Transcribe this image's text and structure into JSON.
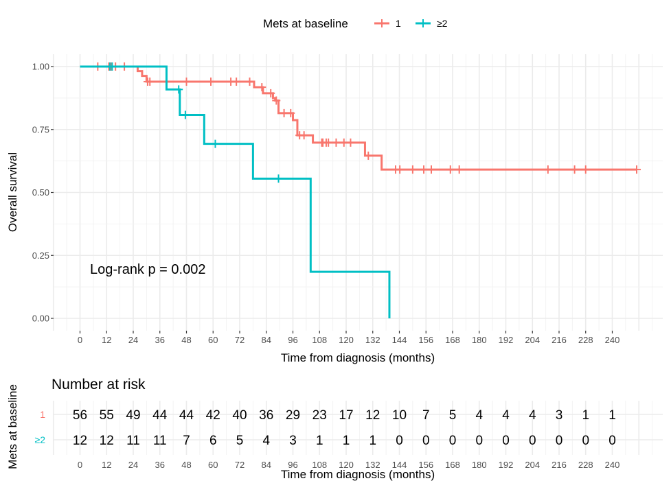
{
  "chart_data": {
    "type": "line",
    "subtype": "kaplan-meier",
    "title": "",
    "xlabel": "Time from diagnosis (months)",
    "ylabel": "Overall survival",
    "xlim": [
      -13,
      263
    ],
    "ylim": [
      0,
      1
    ],
    "x_ticks": [
      0,
      12,
      24,
      36,
      48,
      60,
      72,
      84,
      96,
      108,
      120,
      132,
      144,
      156,
      168,
      180,
      192,
      204,
      216,
      228,
      240
    ],
    "x_tick_labels": [
      "0",
      "12",
      "24",
      "36",
      "48",
      "60",
      "72",
      "84",
      "96",
      "108",
      "120",
      "132",
      "144",
      "156",
      "168",
      "180",
      "192",
      "204",
      "216",
      "228",
      "240"
    ],
    "y_ticks": [
      0,
      0.25,
      0.5,
      0.75,
      1.0
    ],
    "y_tick_labels": [
      "0.00",
      "0.25",
      "0.50",
      "0.75",
      "1.00"
    ],
    "grid": true,
    "legend": {
      "title": "Mets at baseline",
      "placement": "top",
      "entries": [
        "1",
        "≥2"
      ]
    },
    "annotation": "Log-rank p = 0.002",
    "series": [
      {
        "name": "1",
        "color": "#F8766D",
        "steps": [
          [
            0,
            1.0
          ],
          [
            26,
            0.982
          ],
          [
            28,
            0.963
          ],
          [
            30,
            0.94
          ],
          [
            78.5,
            0.918
          ],
          [
            82.5,
            0.894
          ],
          [
            87,
            0.875
          ],
          [
            88,
            0.865
          ],
          [
            89.5,
            0.815
          ],
          [
            96,
            0.787
          ],
          [
            98,
            0.727
          ],
          [
            105,
            0.698
          ],
          [
            128.5,
            0.646
          ],
          [
            136,
            0.591
          ]
        ],
        "end_time": 251,
        "censored": [
          8,
          13,
          14,
          16,
          20,
          30.5,
          31.5,
          48,
          59,
          68,
          70.5,
          76.5,
          82,
          86,
          88.5,
          92,
          95,
          99,
          101,
          109,
          109.5,
          111,
          112,
          115.5,
          119,
          122,
          130,
          142.3,
          144.2,
          150,
          155,
          158.4,
          167,
          171,
          211,
          223,
          228,
          251
        ]
      },
      {
        "name": "≥2",
        "color": "#00BFC4",
        "steps": [
          [
            0,
            1.0
          ],
          [
            39,
            0.909
          ],
          [
            45,
            0.808
          ],
          [
            56,
            0.693
          ],
          [
            78,
            0.555
          ],
          [
            104,
            0.185
          ],
          [
            139.5,
            0.0
          ]
        ],
        "end_time": 139.5,
        "censored": [
          13.5,
          14.5,
          44.5,
          47.5,
          61,
          89.5
        ]
      }
    ],
    "risk_table": {
      "title": "Number at risk",
      "ylabel": "Mets at baseline",
      "xlabel": "Time from diagnosis (months)",
      "times": [
        0,
        12,
        24,
        36,
        48,
        60,
        72,
        84,
        96,
        108,
        120,
        132,
        144,
        156,
        168,
        180,
        192,
        204,
        216,
        228,
        240
      ],
      "groups": [
        {
          "label": "1",
          "color": "#F8766D",
          "counts": [
            56,
            55,
            49,
            44,
            44,
            42,
            40,
            36,
            29,
            23,
            17,
            12,
            10,
            7,
            5,
            4,
            4,
            4,
            3,
            1,
            1
          ]
        },
        {
          "label": "≥2",
          "color": "#00BFC4",
          "counts": [
            12,
            12,
            11,
            11,
            7,
            6,
            5,
            4,
            3,
            1,
            1,
            1,
            0,
            0,
            0,
            0,
            0,
            0,
            0,
            0,
            0
          ]
        }
      ]
    }
  }
}
